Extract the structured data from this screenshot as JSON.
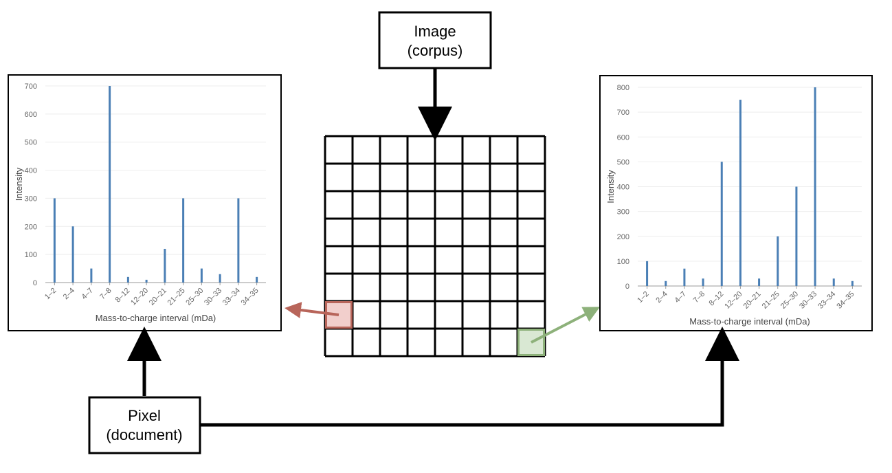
{
  "image_box": {
    "line1": "Image",
    "line2": "(corpus)"
  },
  "pixel_box": {
    "line1": "Pixel",
    "line2": "(document)"
  },
  "grid": {
    "rows": 8,
    "cols": 8
  },
  "colors": {
    "bar": "#4a7fb5",
    "highlight_left_fill": "#f2cfcc",
    "highlight_left_stroke": "#b8655a",
    "highlight_right_fill": "#d9e8d3",
    "highlight_right_stroke": "#8db17a",
    "arrow_left": "#b8655a",
    "arrow_right": "#8db17a",
    "frame": "#000000",
    "axis_text": "#666666"
  },
  "chart_data": [
    {
      "type": "bar",
      "title": "",
      "xlabel": "Mass-to-charge interval (mDa)",
      "ylabel": "Intensity",
      "ylim": [
        0,
        700
      ],
      "yticks": [
        0,
        100,
        200,
        300,
        400,
        500,
        600,
        700
      ],
      "categories": [
        "1–2",
        "2–4",
        "4–7",
        "7–8",
        "8–12",
        "12–20",
        "20–21",
        "21–25",
        "25–30",
        "30–33",
        "33–34",
        "34–35"
      ],
      "values": [
        300,
        200,
        50,
        700,
        20,
        10,
        120,
        300,
        50,
        30,
        300,
        20
      ]
    },
    {
      "type": "bar",
      "title": "",
      "xlabel": "Mass-to-charge interval (mDa)",
      "ylabel": "Intensity",
      "ylim": [
        0,
        800
      ],
      "yticks": [
        0,
        100,
        200,
        300,
        400,
        500,
        600,
        700,
        800
      ],
      "categories": [
        "1–2",
        "2–4",
        "4–7",
        "7–8",
        "8–12",
        "12–20",
        "20–21",
        "21–25",
        "25–30",
        "30–33",
        "33–34",
        "34–35"
      ],
      "values": [
        100,
        20,
        70,
        30,
        500,
        750,
        30,
        200,
        400,
        800,
        30,
        20
      ]
    }
  ]
}
